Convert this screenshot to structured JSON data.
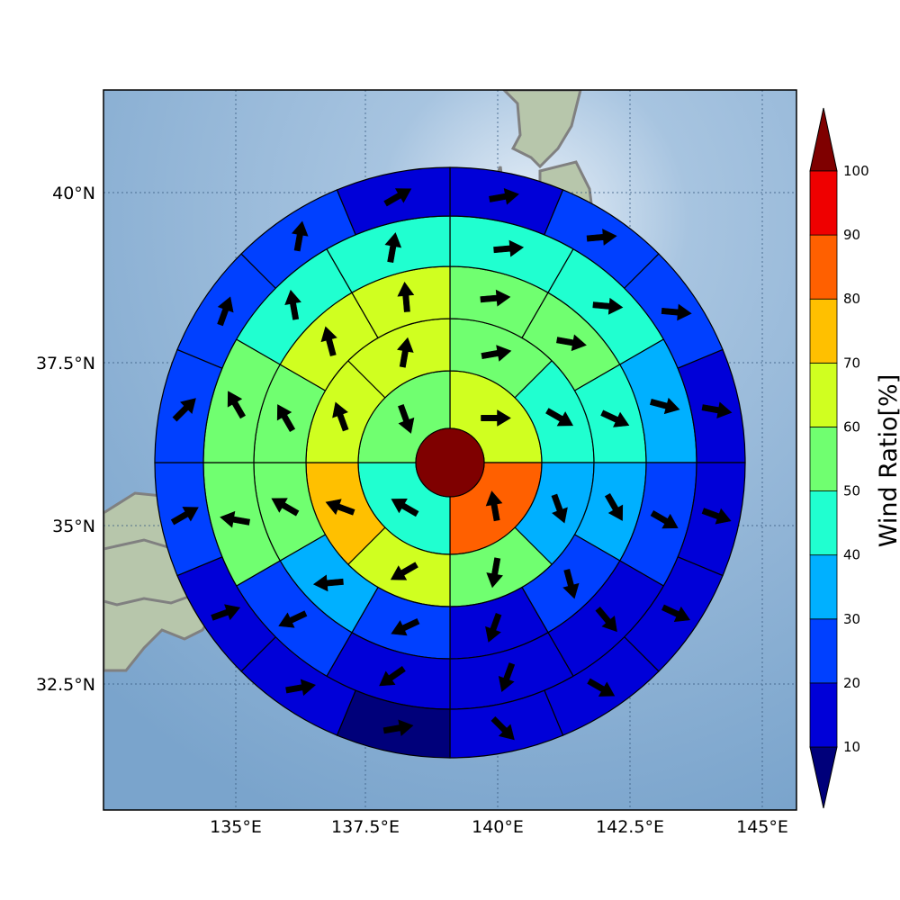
{
  "chart_data": {
    "type": "heatmap",
    "subtype": "polar-sector-wind-map",
    "x_axis": {
      "ticks": [
        135,
        137.5,
        140,
        142.5,
        145
      ],
      "tick_labels": [
        "135°E",
        "137.5°E",
        "140°E",
        "142.5°E",
        "145°E"
      ],
      "range": [
        132.8,
        145.6
      ]
    },
    "y_axis": {
      "ticks": [
        32.5,
        35,
        37.5,
        40
      ],
      "tick_labels": [
        "32.5°N",
        "35°N",
        "37.5°N",
        "40°N"
      ],
      "range": [
        30.7,
        41.5
      ]
    },
    "grid": true,
    "colorbar": {
      "label": "Wind Ratio[%]",
      "ticks": [
        10,
        20,
        30,
        40,
        50,
        60,
        70,
        80,
        90,
        100
      ],
      "tick_labels": [
        "10",
        "20",
        "30",
        "40",
        "50",
        "60",
        "70",
        "80",
        "90",
        "100"
      ],
      "colors": [
        "#0000d8",
        "#0040ff",
        "#00b0ff",
        "#20ffd0",
        "#70ff70",
        "#d0ff20",
        "#ffc000",
        "#ff6000",
        "#ef0000"
      ],
      "under_color": "#00007a",
      "over_color": "#7f0000",
      "extend": "both"
    },
    "center": {
      "lon": 139.0,
      "lat": 36.0,
      "value": 100
    },
    "rings": [
      {
        "sectors": 4,
        "values": [
          62,
          83,
          48,
          53
        ],
        "directions": [
          90,
          350,
          300,
          160
        ]
      },
      {
        "sectors": 8,
        "values": [
          53,
          40,
          32,
          50,
          62,
          74,
          60,
          62
        ],
        "directions": [
          80,
          120,
          160,
          190,
          240,
          290,
          340,
          10
        ]
      },
      {
        "sectors": 12,
        "values": [
          50,
          50,
          40,
          35,
          20,
          18,
          28,
          30,
          50,
          55,
          60,
          60
        ],
        "directions": [
          85,
          100,
          115,
          150,
          165,
          200,
          245,
          265,
          300,
          330,
          345,
          355
        ]
      },
      {
        "sectors": 12,
        "values": [
          42,
          40,
          30,
          25,
          18,
          15,
          18,
          20,
          50,
          50,
          45,
          43
        ],
        "directions": [
          85,
          95,
          105,
          120,
          140,
          200,
          235,
          245,
          280,
          330,
          350,
          10
        ]
      },
      {
        "sectors": 16,
        "values": [
          15,
          28,
          25,
          15,
          12,
          15,
          15,
          15,
          5,
          15,
          18,
          20,
          20,
          25,
          25,
          15
        ],
        "directions": [
          80,
          85,
          95,
          100,
          110,
          115,
          120,
          135,
          80,
          80,
          70,
          60,
          45,
          20,
          10,
          60
        ]
      }
    ]
  },
  "map": {
    "background": "#8db3d5",
    "land": "#c4cfb8",
    "coastline": "#808080"
  }
}
